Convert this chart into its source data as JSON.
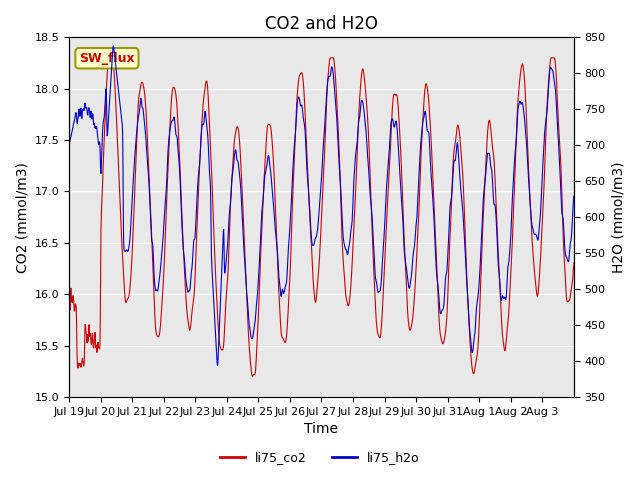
{
  "title": "CO2 and H2O",
  "xlabel": "Time",
  "ylabel_left": "CO2 (mmol/m3)",
  "ylabel_right": "H2O (mmol/m3)",
  "ylim_left": [
    15.0,
    18.5
  ],
  "ylim_right": [
    350,
    850
  ],
  "yticks_left": [
    15.0,
    15.5,
    16.0,
    16.5,
    17.0,
    17.5,
    18.0,
    18.5
  ],
  "yticks_right": [
    350,
    400,
    450,
    500,
    550,
    600,
    650,
    700,
    750,
    800,
    850
  ],
  "xtick_labels": [
    "Jul 19",
    "Jul 20",
    "Jul 21",
    "Jul 22",
    "Jul 23",
    "Jul 24",
    "Jul 25",
    "Jul 26",
    "Jul 27",
    "Jul 28",
    "Jul 29",
    "Jul 30",
    "Jul 31",
    "Aug 1",
    "Aug 2",
    "Aug 3"
  ],
  "color_co2": "#cc0000",
  "color_h2o": "#0000cc",
  "legend_labels": [
    "li75_co2",
    "li75_h2o"
  ],
  "sw_flux_label": "SW_flux",
  "sw_flux_box_color": "#ffffcc",
  "sw_flux_border_color": "#999900",
  "sw_flux_text_color": "#cc0000",
  "background_color": "#ffffff",
  "plot_bg_color": "#e8e8e8",
  "grid_color": "#ffffff",
  "title_fontsize": 12,
  "label_fontsize": 10,
  "tick_fontsize": 8
}
